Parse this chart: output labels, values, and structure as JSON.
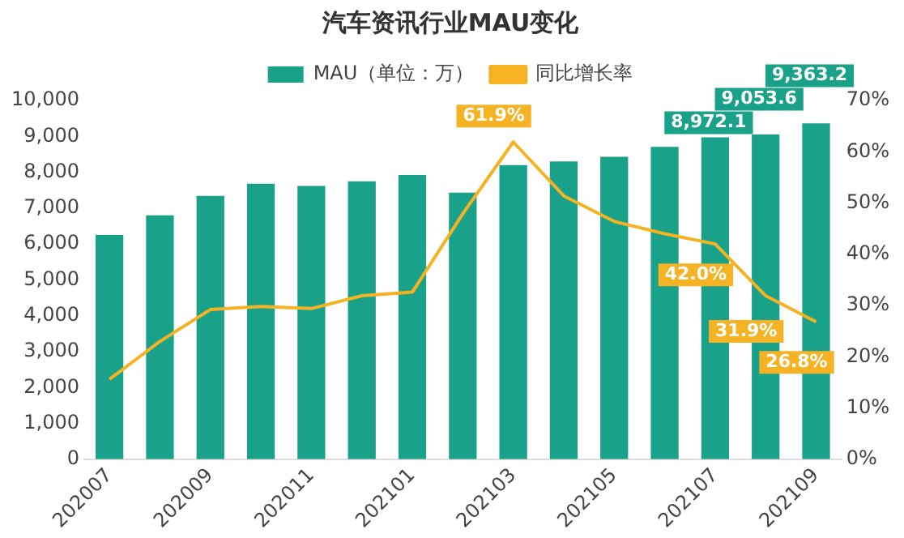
{
  "chart_data": {
    "type": "bar",
    "title": "汽车资讯行业MAU变化",
    "categories": [
      "202007",
      null,
      "202009",
      null,
      "202011",
      null,
      "202101",
      null,
      "202103",
      null,
      "202105",
      null,
      "202107",
      null,
      "202109"
    ],
    "series": [
      {
        "name": "MAU（单位：万）",
        "color": "#1aa18a",
        "values": [
          6250,
          6800,
          7340,
          7680,
          7620,
          7750,
          7920,
          7430,
          8200,
          8300,
          8430,
          8710,
          8972.1,
          9053.6,
          9363.2
        ],
        "value_labels": [
          null,
          null,
          null,
          null,
          null,
          null,
          null,
          null,
          null,
          null,
          null,
          null,
          "8,972.1",
          "9,053.6",
          "9,363.2"
        ]
      },
      {
        "name": "同比增长率",
        "type": "line",
        "axis": "y2",
        "color": "#f5b324",
        "values": [
          15.6,
          23,
          29.2,
          29.8,
          29.4,
          31.9,
          32.6,
          47.9,
          61.9,
          51.4,
          46.4,
          44,
          42.0,
          31.9,
          26.8
        ],
        "value_labels": [
          null,
          null,
          null,
          null,
          null,
          null,
          null,
          null,
          "61.9%",
          null,
          null,
          null,
          "42.0%",
          "31.9%",
          "26.8%"
        ]
      }
    ],
    "ylim": [
      0,
      10000
    ],
    "yticks": [
      {
        "value": 0,
        "label": "0"
      },
      {
        "value": 1000,
        "label": "1,000"
      },
      {
        "value": 2000,
        "label": "2,000"
      },
      {
        "value": 3000,
        "label": "3,000"
      },
      {
        "value": 4000,
        "label": "4,000"
      },
      {
        "value": 5000,
        "label": "5,000"
      },
      {
        "value": 6000,
        "label": "6,000"
      },
      {
        "value": 7000,
        "label": "7,000"
      },
      {
        "value": 8000,
        "label": "8,000"
      },
      {
        "value": 9000,
        "label": "9,000"
      },
      {
        "value": 10000,
        "label": "10,000"
      }
    ],
    "y2lim": [
      0,
      70
    ],
    "y2ticks": [
      {
        "value": 0,
        "label": "0%"
      },
      {
        "value": 10,
        "label": "10%"
      },
      {
        "value": 20,
        "label": "20%"
      },
      {
        "value": 30,
        "label": "30%"
      },
      {
        "value": 40,
        "label": "40%"
      },
      {
        "value": 50,
        "label": "50%"
      },
      {
        "value": 60,
        "label": "60%"
      },
      {
        "value": 70,
        "label": "70%"
      }
    ],
    "legend": "top",
    "grid": false,
    "marker": "none"
  }
}
